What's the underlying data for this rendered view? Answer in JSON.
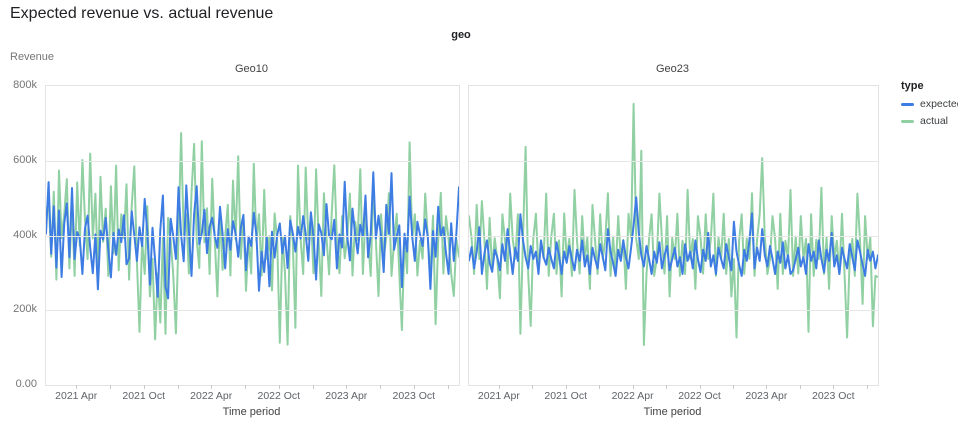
{
  "page_title": "Expected revenue vs. actual revenue",
  "facet_field_label": "geo",
  "y_axis_label": "Revenue",
  "x_axis_label": "Time period",
  "legend": {
    "title": "type",
    "items": [
      {
        "label": "expected",
        "color": "#3d7ce3"
      },
      {
        "label": "actual",
        "color": "#90d0a2"
      }
    ]
  },
  "colors": {
    "expected": "#3d7ce3",
    "actual": "#90d0a2",
    "grid": "#e6e6e6",
    "panel_border": "#e3e3e3",
    "axis_text": "#757575",
    "title_text": "#202124"
  },
  "chart_data": [
    {
      "type": "line",
      "title": "Geo10",
      "xlabel": "Time period",
      "ylabel": "Revenue",
      "x_unit": "week",
      "x_range_note": "weekly points, Jan 2021 to Jan 2024, values estimated from pixels in thousands",
      "ylim_k": [
        0,
        800
      ],
      "y_tick_labels": [
        "0.00",
        "200k",
        "400k",
        "600k",
        "800k"
      ],
      "x_major_ticks": [
        {
          "label": "2021 Apr",
          "week": 12
        },
        {
          "label": "2021 Oct",
          "week": 38
        },
        {
          "label": "2022 Apr",
          "week": 64
        },
        {
          "label": "2022 Oct",
          "week": 90
        },
        {
          "label": "2023 Apr",
          "week": 116
        },
        {
          "label": "2023 Oct",
          "week": 142
        }
      ],
      "x_minor_tick_weeks": [
        25,
        51,
        77,
        103,
        129,
        155
      ],
      "series": [
        {
          "name": "actual",
          "color": "#90d0a2",
          "values_k": [
            457,
            497,
            343,
            517,
            282,
            574,
            393,
            455,
            551,
            312,
            487,
            292,
            542,
            372,
            602,
            443,
            337,
            619,
            392,
            512,
            297,
            557,
            383,
            472,
            292,
            532,
            352,
            587,
            307,
            457,
            393,
            537,
            282,
            477,
            585,
            333,
            142,
            388,
            297,
            478,
            237,
            338,
            122,
            298,
            167,
            394,
            137,
            447,
            386,
            293,
            138,
            397,
            674,
            403,
            457,
            298,
            513,
            645,
            388,
            313,
            652,
            382,
            473,
            297,
            552,
            386,
            237,
            458,
            308,
            397,
            482,
            293,
            547,
            389,
            612,
            338,
            453,
            252,
            394,
            298,
            592,
            384,
            457,
            293,
            522,
            337,
            398,
            253,
            459,
            387,
            113,
            396,
            298,
            108,
            452,
            383,
            153,
            587,
            391,
            297,
            582,
            389,
            453,
            299,
            577,
            384,
            238,
            513,
            394,
            296,
            458,
            588,
            386,
            299,
            452,
            339,
            397,
            512,
            293,
            437,
            388,
            577,
            297,
            455,
            391,
            292,
            533,
            387,
            238,
            457,
            337,
            396,
            513,
            292,
            384,
            458,
            298,
            147,
            389,
            299,
            649,
            392,
            457,
            293,
            386,
            338,
            512,
            397,
            294,
            453,
            163,
            387,
            514,
            298,
            452,
            389,
            297,
            238,
            391,
            343
          ]
        },
        {
          "name": "expected",
          "color": "#3d7ce3",
          "values_k": [
            405,
            543,
            351,
            478,
            314,
            467,
            289,
            431,
            486,
            342,
            527,
            337,
            409,
            392,
            297,
            419,
            453,
            367,
            299,
            403,
            256,
            413,
            389,
            447,
            364,
            288,
            407,
            348,
            416,
            382,
            454,
            323,
            339,
            465,
            401,
            332,
            422,
            371,
            498,
            409,
            269,
            421,
            333,
            236,
            415,
            507,
            263,
            232,
            445,
            397,
            337,
            529,
            403,
            331,
            534,
            412,
            292,
            457,
            532,
            377,
            406,
            469,
            353,
            423,
            448,
            398,
            367,
            477,
            403,
            312,
            417,
            362,
            438,
            405,
            343,
            420,
            455,
            307,
            397,
            372,
            461,
            403,
            252,
            357,
            302,
            396,
            264,
            410,
            341,
            402,
            432,
            352,
            399,
            313,
            440,
            406,
            357,
            423,
            392,
            452,
            404,
            332,
            462,
            397,
            282,
            430,
            407,
            347,
            484,
            399,
            390,
            442,
            312,
            403,
            368,
            544,
            396,
            333,
            472,
            405,
            352,
            429,
            399,
            507,
            342,
            403,
            569,
            392,
            453,
            397,
            302,
            482,
            404,
            567,
            362,
            399,
            427,
            262,
            405,
            357,
            504,
            398,
            332,
            437,
            403,
            372,
            443,
            396,
            257,
            412,
            343,
            477,
            399,
            422,
            353,
            297,
            433,
            332,
            406,
            529
          ]
        }
      ]
    },
    {
      "type": "line",
      "title": "Geo23",
      "xlabel": "Time period",
      "ylabel": "Revenue",
      "x_unit": "week",
      "x_range_note": "weekly points, Jan 2021 to Jan 2024, values estimated from pixels in thousands",
      "ylim_k": [
        0,
        800
      ],
      "y_tick_labels": [
        "0.00",
        "200k",
        "400k",
        "600k",
        "800k"
      ],
      "x_major_ticks": [
        {
          "label": "2021 Apr",
          "week": 12
        },
        {
          "label": "2021 Oct",
          "week": 38
        },
        {
          "label": "2022 Apr",
          "week": 64
        },
        {
          "label": "2022 Oct",
          "week": 90
        },
        {
          "label": "2023 Apr",
          "week": 116
        },
        {
          "label": "2023 Oct",
          "week": 142
        }
      ],
      "x_minor_tick_weeks": [
        25,
        51,
        77,
        103,
        129,
        155
      ],
      "series": [
        {
          "name": "actual",
          "color": "#90d0a2",
          "values_k": [
            452,
            392,
            297,
            482,
            337,
            492,
            389,
            257,
            447,
            307,
            393,
            337,
            232,
            457,
            388,
            298,
            512,
            391,
            338,
            457,
            137,
            394,
            637,
            297,
            158,
            392,
            458,
            307,
            386,
            339,
            512,
            292,
            397,
            458,
            297,
            387,
            237,
            459,
            337,
            391,
            292,
            522,
            386,
            298,
            452,
            337,
            394,
            257,
            482,
            389,
            297,
            457,
            337,
            391,
            513,
            292,
            397,
            298,
            452,
            337,
            388,
            257,
            458,
            394,
            752,
            391,
            337,
            627,
            107,
            297,
            392,
            457,
            292,
            337,
            512,
            389,
            298,
            452,
            237,
            394,
            337,
            458,
            292,
            386,
            297,
            522,
            337,
            391,
            257,
            452,
            397,
            298,
            457,
            337,
            389,
            512,
            292,
            394,
            337,
            458,
            297,
            391,
            237,
            337,
            127,
            386,
            457,
            297,
            392,
            338,
            513,
            292,
            389,
            458,
            607,
            394,
            297,
            337,
            452,
            391,
            257,
            458,
            297,
            386,
            337,
            522,
            292,
            397,
            298,
            452,
            337,
            391,
            142,
            457,
            292,
            389,
            337,
            528,
            297,
            394,
            257,
            452,
            337,
            386,
            297,
            458,
            292,
            127,
            337,
            391,
            292,
            512,
            388,
            217,
            452,
            337,
            394,
            157,
            292,
            289
          ]
        },
        {
          "name": "expected",
          "color": "#3d7ce3",
          "values_k": [
            333,
            369,
            312,
            357,
            422,
            297,
            352,
            387,
            327,
            303,
            362,
            342,
            307,
            377,
            332,
            417,
            352,
            297,
            367,
            332,
            457,
            387,
            342,
            312,
            372,
            337,
            357,
            297,
            387,
            342,
            322,
            367,
            337,
            312,
            382,
            347,
            297,
            357,
            327,
            372,
            337,
            307,
            362,
            332,
            387,
            317,
            347,
            297,
            367,
            337,
            312,
            377,
            342,
            307,
            417,
            357,
            327,
            292,
            362,
            332,
            387,
            342,
            312,
            367,
            427,
            502,
            407,
            347,
            317,
            372,
            337,
            297,
            357,
            327,
            382,
            312,
            347,
            372,
            307,
            337,
            367,
            317,
            342,
            297,
            377,
            332,
            357,
            312,
            387,
            337,
            302,
            362,
            332,
            407,
            317,
            347,
            297,
            367,
            337,
            312,
            377,
            342,
            307,
            437,
            357,
            322,
            292,
            362,
            332,
            387,
            459,
            312,
            367,
            332,
            417,
            347,
            317,
            372,
            337,
            297,
            357,
            327,
            382,
            312,
            347,
            297,
            307,
            337,
            367,
            317,
            342,
            297,
            377,
            332,
            357,
            312,
            387,
            337,
            302,
            362,
            332,
            407,
            317,
            347,
            297,
            367,
            337,
            312,
            377,
            342,
            307,
            387,
            357,
            322,
            292,
            362,
            332,
            357,
            312,
            347
          ]
        }
      ]
    }
  ]
}
